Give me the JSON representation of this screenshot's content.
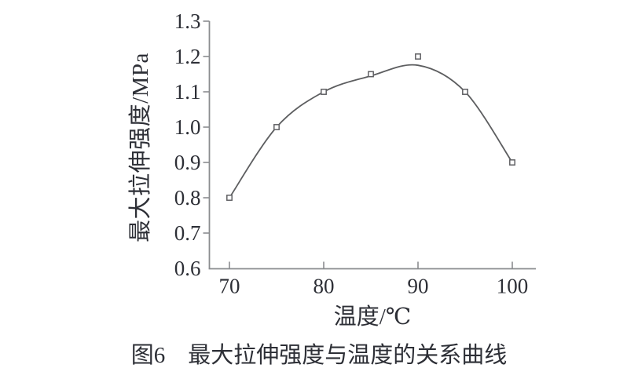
{
  "figure": {
    "caption": "图6　最大拉伸强度与温度的关系曲线"
  },
  "chart_data": {
    "type": "line",
    "title": "",
    "xlabel": "温度/℃",
    "ylabel": "最大拉伸强度/MPa",
    "x": [
      70,
      75,
      80,
      85,
      90,
      95,
      100
    ],
    "series": [
      {
        "name": "最大拉伸强度",
        "values": [
          0.8,
          1.0,
          1.1,
          1.15,
          1.2,
          1.1,
          0.9
        ],
        "marker": "open-square"
      }
    ],
    "fit_curve": {
      "x": [
        70,
        75,
        80,
        85,
        90,
        95,
        100
      ],
      "y": [
        0.8,
        1.0,
        1.1,
        1.145,
        1.175,
        1.1,
        0.9
      ]
    },
    "xlim": [
      67.8,
      102.5
    ],
    "ylim": [
      0.6,
      1.3
    ],
    "x_ticks": [
      70,
      80,
      90,
      100
    ],
    "x_tick_labels": [
      "70",
      "80",
      "90",
      "100"
    ],
    "y_ticks": [
      0.6,
      0.7,
      0.8,
      0.9,
      1.0,
      1.1,
      1.2,
      1.3
    ],
    "y_tick_labels": [
      "0.6",
      "0.7",
      "0.8",
      "0.9",
      "1.0",
      "1.1",
      "1.2",
      "1.3"
    ],
    "grid": false,
    "legend": false,
    "colors": {
      "axis": "#8a8c8f",
      "curve": "#5d5e60",
      "marker_stroke": "#606164",
      "text": "#2d2f36"
    }
  }
}
